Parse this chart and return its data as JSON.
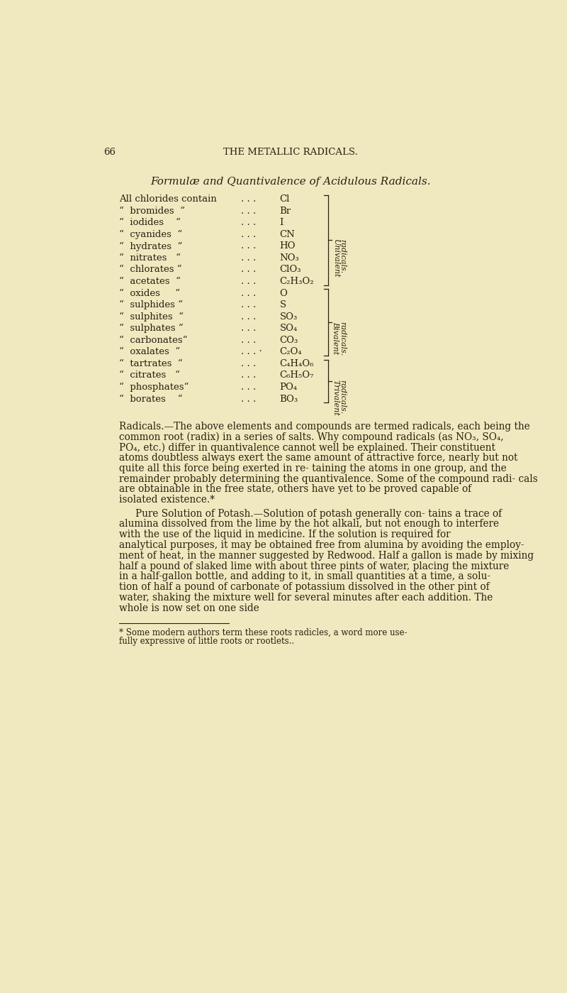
{
  "bg_color": "#f0e9c0",
  "page_number": "66",
  "header": "THE METALLIC RADICALS.",
  "title": "Formulæ and Quantivalence of Acidulous Radicals.",
  "table_rows": [
    [
      "All chlorides contain",
      ". . .",
      "Cl"
    ],
    [
      "“  bromides  “",
      ". . .",
      "Br"
    ],
    [
      "“  iodides    “",
      ". . .",
      "I"
    ],
    [
      "“  cyanides  “",
      ". . .",
      "CN"
    ],
    [
      "“  hydrates  “",
      ". . .",
      "HO"
    ],
    [
      "“  nitrates   “",
      ". . .",
      "NO₃"
    ],
    [
      "“  chlorates “",
      ". . .",
      "ClO₃"
    ],
    [
      "“  acetates  “",
      ". . .",
      "C₂H₃O₂"
    ],
    [
      "“  oxides     “",
      ". . .",
      "O"
    ],
    [
      "“  sulphides “",
      ". . .",
      "S"
    ],
    [
      "“  sulphites  “",
      ". . .",
      "SO₃"
    ],
    [
      "“  sulphates “",
      ". . .",
      "SO₄"
    ],
    [
      "“  carbonates“",
      ". . .",
      "CO₃"
    ],
    [
      "“  oxalates  “",
      ". . . ·",
      "C₂O₄"
    ],
    [
      "“  tartrates  “",
      ". . .",
      "C₄H₄O₆"
    ],
    [
      "“  citrates   “",
      ". . .",
      "C₆H₅O₇"
    ],
    [
      "“  phosphates“",
      ". . .",
      "PO₄"
    ],
    [
      "“  borates    “",
      ". . .",
      "BO₃"
    ]
  ],
  "brace_uni_rows": [
    0,
    7
  ],
  "brace_biv_rows": [
    8,
    13
  ],
  "brace_tri_rows": [
    14,
    17
  ],
  "label_univalent": "Univalent",
  "label_univalent2": "radicals.",
  "label_bivalent": "Bivalent",
  "label_bivalent2": "radicals.",
  "label_trivalent": "Trivalent",
  "label_trivalent2": "radicals.",
  "para1_italic": "Radicals.",
  "para1_body": "—The above elements and compounds are termed radicals, each being the common root (radix) in a series of salts.  Why compound radicals (as NO₃, SO₄, PO₄, etc.) differ in quantivalence cannot well be explained.  Their constituent atoms doubtless always exert the same amount of attractive force, nearly but not quite all this force being exerted in re- taining the atoms in one group, and the remainder probably determining the quantivalence.  Some of the compound radi- cals are obtainable in the free state, others have yet to be proved capable of isolated existence.*",
  "para2_italic": "Pure Solution of Potash.",
  "para2_body": "—Solution of potash generally con- tains a trace of alumina dissolved from the lime by the hot alkali, but not enough to interfere with the use of the liquid in medicine.  If the solution is required for analytical purposes, it may be obtained free from alumina by avoiding the employ- ment of heat, in the manner suggested by Redwood.  Half a gallon is made by mixing half a pound of slaked lime with about three pints of water, placing the mixture in a half-gallon bottle, and adding to it, in small quantities at a time, a solu- tion of half a pound of carbonate of potassium dissolved in the other pint of water, shaking the mixture well for several minutes after each addition.  The whole is now set on one side",
  "footnote": "* Some modern authors term these roots radicles, a word more use-",
  "footnote2": "fully expressive of little roots or rootlets..",
  "text_color": "#2a2010",
  "font_size_body": 9.8
}
